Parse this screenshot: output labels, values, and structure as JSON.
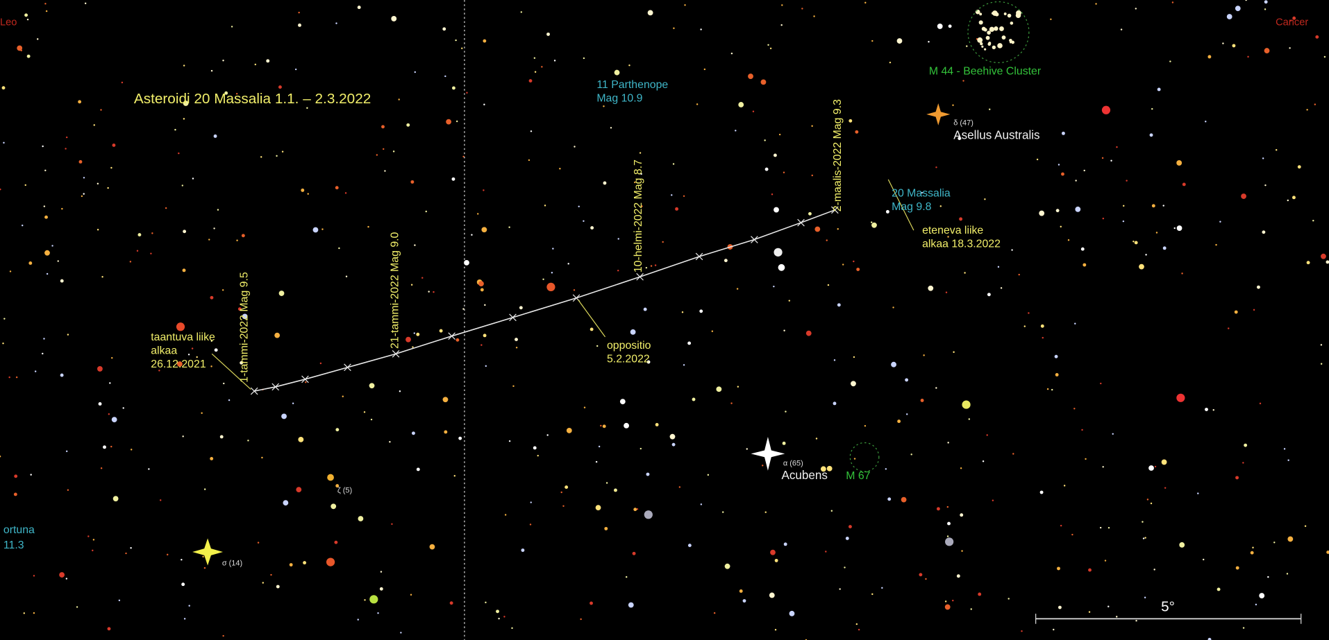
{
  "title": "Asteroidi 20 Massalia 1.1. – 2.3.2022",
  "constellations": {
    "left": "Leo",
    "right": "Cancer"
  },
  "parthenope": {
    "name": "11 Parthenope",
    "mag": "Mag 10.9"
  },
  "beehive": "M 44 - Beehive Cluster",
  "asellus": {
    "designation": "δ (47)",
    "name": "Asellus Australis"
  },
  "massalia": {
    "name": "20 Massalia",
    "mag": "Mag 9.8"
  },
  "prograde": {
    "line1": "eteneva liike",
    "line2": "alkaa 18.3.2022"
  },
  "retrograde": {
    "line1": "taantuva liike",
    "line2": "alkaa",
    "line3": "26.12.2021"
  },
  "opposition": {
    "line1": "oppositio",
    "line2": "5.2.2022"
  },
  "dates": [
    "1-tammi-2022   Mag 9.5",
    "21-tammi-2022   Mag 9.0",
    "10-helmi-2022   Mag 8.7",
    "2-maalis-2022   Mag 9.3"
  ],
  "acubens": {
    "designation": "α (65)",
    "name": "Acubens"
  },
  "m67": "M 67",
  "zeta": "ζ (5)",
  "sigma": "σ (14)",
  "fortuna": {
    "name": "ortuna",
    "mag": "11.3"
  },
  "scale": "5°"
}
